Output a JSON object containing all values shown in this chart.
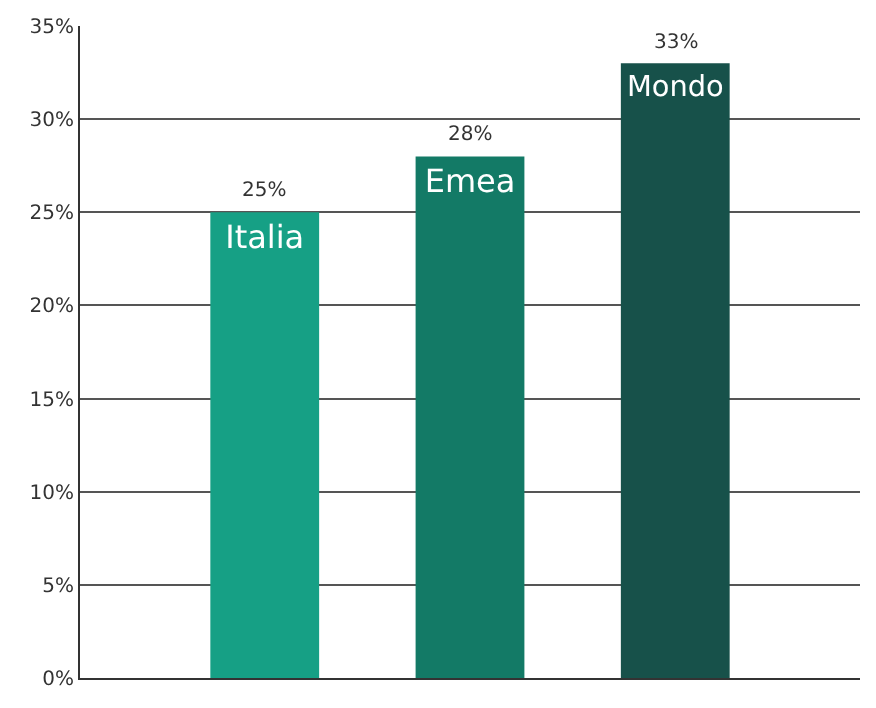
{
  "chart_data": {
    "type": "bar",
    "categories": [
      "Italia",
      "Emea",
      "Mondo"
    ],
    "values": [
      25,
      28,
      33
    ],
    "colors": [
      "#16a085",
      "#137a66",
      "#17514a"
    ],
    "value_labels": [
      "25%",
      "28%",
      "33%"
    ],
    "ylim": [
      0,
      35
    ],
    "yticks": [
      {
        "value": 0,
        "label": "0%"
      },
      {
        "value": 5,
        "label": "5%"
      },
      {
        "value": 10,
        "label": "10%"
      },
      {
        "value": 15,
        "label": "15%"
      },
      {
        "value": 20,
        "label": "20%"
      },
      {
        "value": 25,
        "label": "25%"
      },
      {
        "value": 30,
        "label": "30%"
      },
      {
        "value": 35,
        "label": "35%"
      }
    ],
    "tick_labels": "y",
    "grid": "y",
    "legend": false
  }
}
